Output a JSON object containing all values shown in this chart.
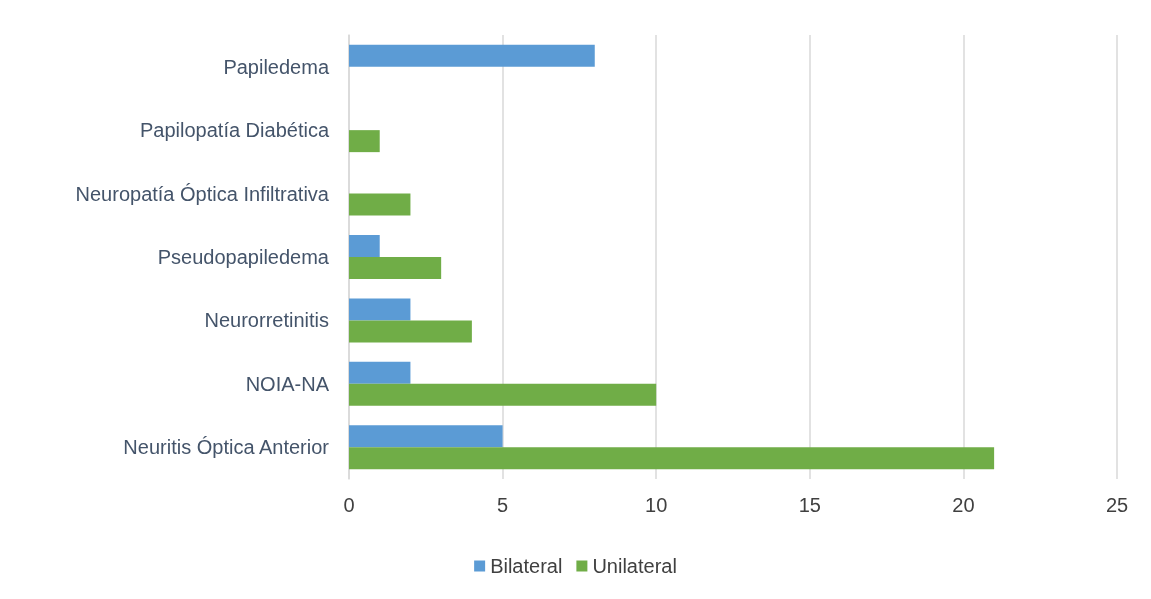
{
  "chart_data": {
    "type": "bar",
    "orientation": "horizontal",
    "categories": [
      "Papiledema",
      "Papilopatía Diabética",
      "Neuropatía Óptica Infiltrativa",
      "Pseudopapiledema",
      "Neurorretinitis",
      "NOIA-NA",
      "Neuritis Óptica Anterior"
    ],
    "series": [
      {
        "name": "Bilateral",
        "color": "#5b9bd5",
        "values": [
          8,
          null,
          null,
          1,
          2,
          2,
          5
        ]
      },
      {
        "name": "Unilateral",
        "color": "#70ad47",
        "values": [
          null,
          1,
          2,
          3,
          4,
          10,
          21
        ]
      }
    ],
    "xlim": [
      0,
      25
    ],
    "xticks": [
      0,
      5,
      10,
      15,
      20,
      25
    ],
    "grid": "x",
    "legend": "bottom"
  }
}
